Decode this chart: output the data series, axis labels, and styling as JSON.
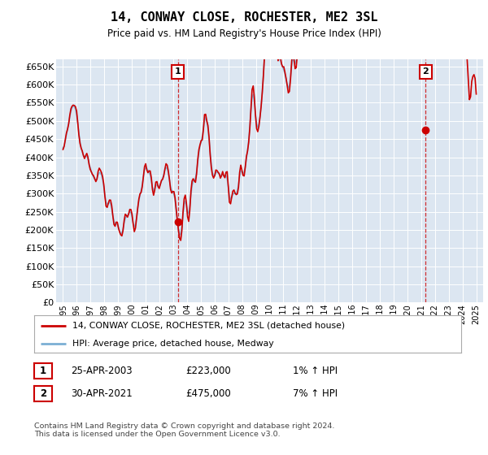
{
  "title": "14, CONWAY CLOSE, ROCHESTER, ME2 3SL",
  "subtitle": "Price paid vs. HM Land Registry's House Price Index (HPI)",
  "ylim": [
    0,
    670000
  ],
  "yticks": [
    0,
    50000,
    100000,
    150000,
    200000,
    250000,
    300000,
    350000,
    400000,
    450000,
    500000,
    550000,
    600000,
    650000
  ],
  "ytick_labels": [
    "£0",
    "£50K",
    "£100K",
    "£150K",
    "£200K",
    "£250K",
    "£300K",
    "£350K",
    "£400K",
    "£450K",
    "£500K",
    "£550K",
    "£600K",
    "£650K"
  ],
  "plot_bg_color": "#dce6f1",
  "line_color_hpi": "#7bafd4",
  "line_color_price": "#cc0000",
  "legend_label1": "14, CONWAY CLOSE, ROCHESTER, ME2 3SL (detached house)",
  "legend_label2": "HPI: Average price, detached house, Medway",
  "footer": "Contains HM Land Registry data © Crown copyright and database right 2024.\nThis data is licensed under the Open Government Licence v3.0.",
  "years": [
    "1995",
    "1996",
    "1997",
    "1998",
    "1999",
    "2000",
    "2001",
    "2002",
    "2003",
    "2004",
    "2005",
    "2006",
    "2007",
    "2008",
    "2009",
    "2010",
    "2011",
    "2012",
    "2013",
    "2014",
    "2015",
    "2016",
    "2017",
    "2018",
    "2019",
    "2020",
    "2021",
    "2022",
    "2023",
    "2024",
    "2025"
  ]
}
